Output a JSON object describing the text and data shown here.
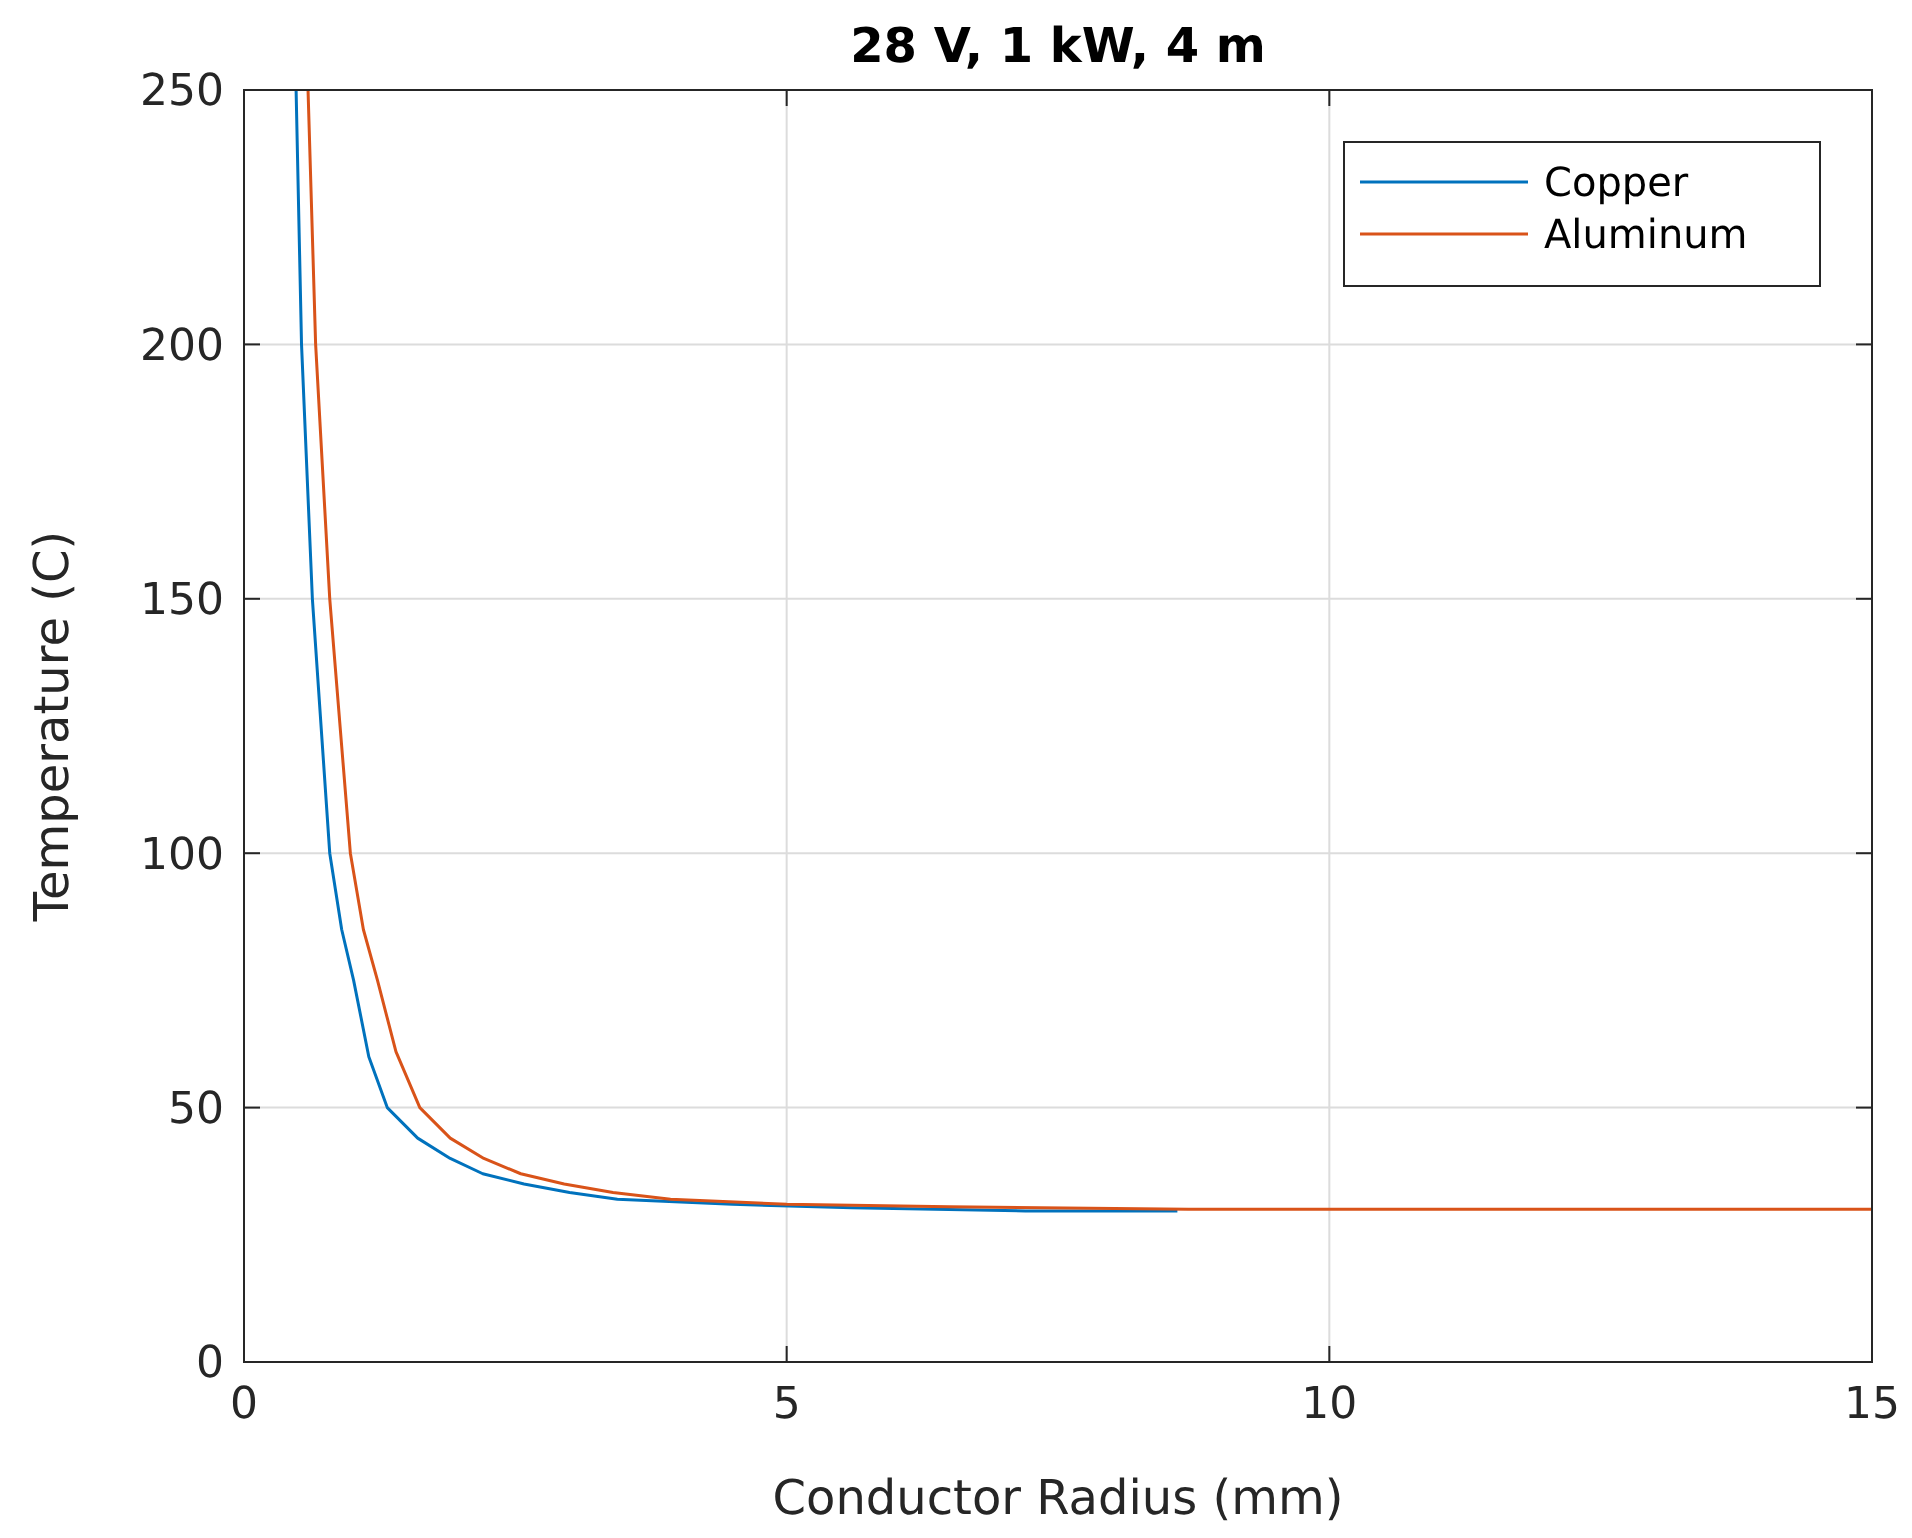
{
  "chart_data": {
    "type": "line",
    "title": "28 V, 1 kW, 4 m",
    "xlabel": "Conductor Radius (mm)",
    "ylabel": "Temperature (C)",
    "xlim": [
      0,
      15
    ],
    "ylim": [
      0,
      250
    ],
    "xticks": [
      0,
      5,
      10,
      15
    ],
    "yticks": [
      0,
      50,
      100,
      150,
      200,
      250
    ],
    "grid": true,
    "legend": "top right",
    "line_style": "solid",
    "marker": "none",
    "series": [
      {
        "name": "Copper",
        "color": "#0072bd",
        "x": [
          0.48,
          0.53,
          0.63,
          0.79,
          0.9,
          1.01,
          1.15,
          1.32,
          1.6,
          1.9,
          2.2,
          2.58,
          3,
          3.44,
          4.5,
          5.6,
          7.2,
          8.6
        ],
        "values": [
          250,
          200,
          150,
          100,
          85,
          75,
          60,
          50,
          44,
          40,
          37,
          35,
          33.3,
          32,
          31,
          30.3,
          29.7,
          29.7
        ]
      },
      {
        "name": "Aluminum",
        "color": "#d95319",
        "x": [
          0.59,
          0.66,
          0.79,
          0.98,
          1.1,
          1.23,
          1.4,
          1.62,
          1.9,
          2.21,
          2.55,
          2.95,
          3.4,
          3.93,
          5,
          6.5,
          8.7,
          10,
          12.5,
          15
        ],
        "values": [
          250,
          200,
          150,
          100,
          85,
          75,
          61,
          50,
          44,
          40,
          37,
          35,
          33.3,
          32,
          31,
          30.5,
          30,
          30,
          30,
          30
        ]
      }
    ]
  }
}
